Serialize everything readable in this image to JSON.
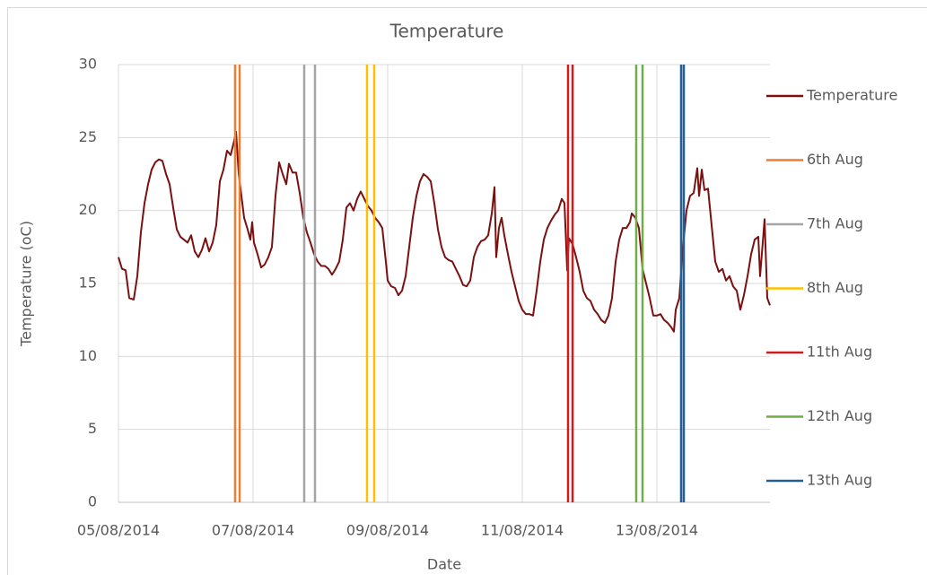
{
  "chart_data": {
    "type": "line",
    "title": "Temperature",
    "x_label": "Date",
    "y_label": "Temperature (oC)",
    "xlim": [
      41856,
      41865.68
    ],
    "ylim": [
      0,
      30
    ],
    "xticks": [
      {
        "value": 41856,
        "label": "05/08/2014"
      },
      {
        "value": 41858,
        "label": "07/08/2014"
      },
      {
        "value": 41860,
        "label": "09/08/2014"
      },
      {
        "value": 41862,
        "label": "11/08/2014"
      },
      {
        "value": 41864,
        "label": "13/08/2014"
      }
    ],
    "yticks": [
      0,
      5,
      10,
      15,
      20,
      25,
      30
    ],
    "grid": true,
    "legend": "right",
    "series": [
      {
        "name": "Temperature",
        "color": "#7b1010",
        "x": [
          41856,
          41856.053,
          41856.107,
          41856.16,
          41856.227,
          41856.28,
          41856.333,
          41856.387,
          41856.44,
          41856.493,
          41856.547,
          41856.6,
          41856.653,
          41856.707,
          41856.76,
          41856.813,
          41856.867,
          41856.92,
          41856.973,
          41857.027,
          41857.08,
          41857.133,
          41857.187,
          41857.24,
          41857.293,
          41857.347,
          41857.4,
          41857.453,
          41857.507,
          41857.56,
          41857.613,
          41857.667,
          41857.72,
          41857.747,
          41857.787,
          41857.827,
          41857.867,
          41857.92,
          41857.96,
          41857.987,
          41858.013,
          41858.067,
          41858.12,
          41858.173,
          41858.227,
          41858.28,
          41858.333,
          41858.387,
          41858.44,
          41858.493,
          41858.533,
          41858.587,
          41858.64,
          41858.693,
          41858.747,
          41858.8,
          41858.853,
          41858.907,
          41858.96,
          41859.013,
          41859.067,
          41859.12,
          41859.173,
          41859.227,
          41859.28,
          41859.333,
          41859.387,
          41859.44,
          41859.493,
          41859.547,
          41859.6,
          41859.653,
          41859.707,
          41859.76,
          41859.813,
          41859.867,
          41859.92,
          41859.973,
          41860,
          41860.053,
          41860.107,
          41860.16,
          41860.213,
          41860.267,
          41860.32,
          41860.373,
          41860.427,
          41860.48,
          41860.533,
          41860.587,
          41860.64,
          41860.693,
          41860.747,
          41860.8,
          41860.853,
          41860.907,
          41860.96,
          41861.013,
          41861.067,
          41861.12,
          41861.173,
          41861.227,
          41861.28,
          41861.333,
          41861.387,
          41861.44,
          41861.493,
          41861.547,
          41861.587,
          41861.613,
          41861.653,
          41861.693,
          41861.733,
          41861.787,
          41861.84,
          41861.893,
          41861.947,
          41862,
          41862.053,
          41862.107,
          41862.16,
          41862.213,
          41862.267,
          41862.32,
          41862.373,
          41862.427,
          41862.48,
          41862.533,
          41862.587,
          41862.627,
          41862.667,
          41862.693,
          41862.747,
          41862.8,
          41862.853,
          41862.907,
          41862.96,
          41863.013,
          41863.067,
          41863.12,
          41863.173,
          41863.227,
          41863.28,
          41863.333,
          41863.387,
          41863.44,
          41863.493,
          41863.547,
          41863.6,
          41863.627,
          41863.68,
          41863.733,
          41863.787,
          41863.84,
          41863.893,
          41863.947,
          41864,
          41864.053,
          41864.107,
          41864.16,
          41864.213,
          41864.253,
          41864.28,
          41864.333,
          41864.387,
          41864.44,
          41864.493,
          41864.547,
          41864.6,
          41864.627,
          41864.667,
          41864.707,
          41864.76,
          41864.813,
          41864.867,
          41864.92,
          41864.973,
          41865.027,
          41865.08,
          41865.133,
          41865.187,
          41865.24,
          41865.293,
          41865.347,
          41865.4,
          41865.453,
          41865.507,
          41865.533,
          41865.573,
          41865.6,
          41865.64,
          41865.68
        ],
        "values": [
          16.8,
          16.0,
          15.9,
          14.0,
          13.9,
          15.5,
          18.5,
          20.5,
          21.8,
          22.8,
          23.3,
          23.5,
          23.4,
          22.5,
          21.8,
          20.2,
          18.7,
          18.2,
          18.0,
          17.8,
          18.3,
          17.2,
          16.8,
          17.3,
          18.1,
          17.2,
          17.8,
          19.0,
          22.0,
          22.8,
          24.1,
          23.8,
          24.8,
          25.4,
          22.5,
          21.0,
          19.5,
          18.7,
          18.0,
          19.2,
          17.8,
          17.0,
          16.1,
          16.3,
          16.8,
          17.5,
          21.0,
          23.3,
          22.5,
          21.8,
          23.2,
          22.6,
          22.6,
          21.2,
          19.5,
          18.5,
          17.8,
          17.0,
          16.5,
          16.2,
          16.2,
          16.0,
          15.6,
          16.0,
          16.5,
          18.0,
          20.2,
          20.5,
          20.0,
          20.8,
          21.3,
          20.8,
          20.3,
          20.0,
          19.5,
          19.2,
          18.8,
          16.5,
          15.2,
          14.8,
          14.7,
          14.2,
          14.5,
          15.5,
          17.5,
          19.5,
          21.0,
          22.0,
          22.5,
          22.3,
          22.0,
          20.5,
          18.7,
          17.5,
          16.8,
          16.6,
          16.5,
          16.0,
          15.5,
          14.9,
          14.8,
          15.2,
          16.8,
          17.5,
          17.9,
          18.0,
          18.3,
          19.8,
          21.6,
          16.8,
          18.8,
          19.5,
          18.3,
          17.0,
          15.8,
          14.8,
          13.8,
          13.2,
          12.9,
          12.9,
          12.8,
          14.5,
          16.5,
          18.0,
          18.8,
          19.3,
          19.7,
          20.0,
          20.8,
          20.5,
          15.9,
          18.1,
          17.7,
          16.8,
          15.8,
          14.5,
          14.0,
          13.8,
          13.2,
          12.9,
          12.5,
          12.3,
          12.8,
          14.0,
          16.5,
          18.0,
          18.8,
          18.8,
          19.2,
          19.8,
          19.5,
          18.8,
          16.0,
          15.0,
          14.0,
          12.8,
          12.8,
          12.9,
          12.5,
          12.3,
          12.0,
          11.7,
          13.2,
          14.0,
          17.5,
          20.0,
          21.0,
          21.2,
          22.9,
          21.0,
          22.8,
          21.4,
          21.5,
          19.0,
          16.5,
          15.8,
          16.0,
          15.2,
          15.5,
          14.8,
          14.5,
          13.2,
          14.2,
          15.5,
          17.0,
          18.0,
          18.2,
          15.5,
          17.8,
          19.4,
          14.0,
          13.5
        ]
      },
      {
        "name": "6th Aug",
        "color": "#ed7d31",
        "x": [
          41857.733,
          41857.733,
          null,
          41857.8,
          41857.8
        ],
        "values": [
          0,
          30,
          null,
          0,
          30
        ]
      },
      {
        "name": "7th Aug",
        "color": "#a5a5a5",
        "x": [
          41858.76,
          41858.76,
          null,
          41858.92,
          41858.92
        ],
        "values": [
          0,
          30,
          null,
          0,
          30
        ]
      },
      {
        "name": "8th Aug",
        "color": "#ffc000",
        "x": [
          41859.693,
          41859.693,
          null,
          41859.8,
          41859.8
        ],
        "values": [
          0,
          30,
          null,
          0,
          30
        ]
      },
      {
        "name": "11th Aug",
        "color": "#d01c1c",
        "x": [
          41862.68,
          41862.68,
          null,
          41862.747,
          41862.747
        ],
        "values": [
          0,
          30,
          null,
          0,
          30
        ]
      },
      {
        "name": "12th Aug",
        "color": "#70ad47",
        "x": [
          41863.693,
          41863.693,
          null,
          41863.787,
          41863.787
        ],
        "values": [
          0,
          30,
          null,
          0,
          30
        ]
      },
      {
        "name": "13th Aug",
        "color": "#255e91",
        "x": [
          41864.36,
          41864.36,
          null,
          41864.4,
          41864.4
        ],
        "values": [
          0,
          30,
          null,
          0,
          30
        ]
      }
    ]
  }
}
